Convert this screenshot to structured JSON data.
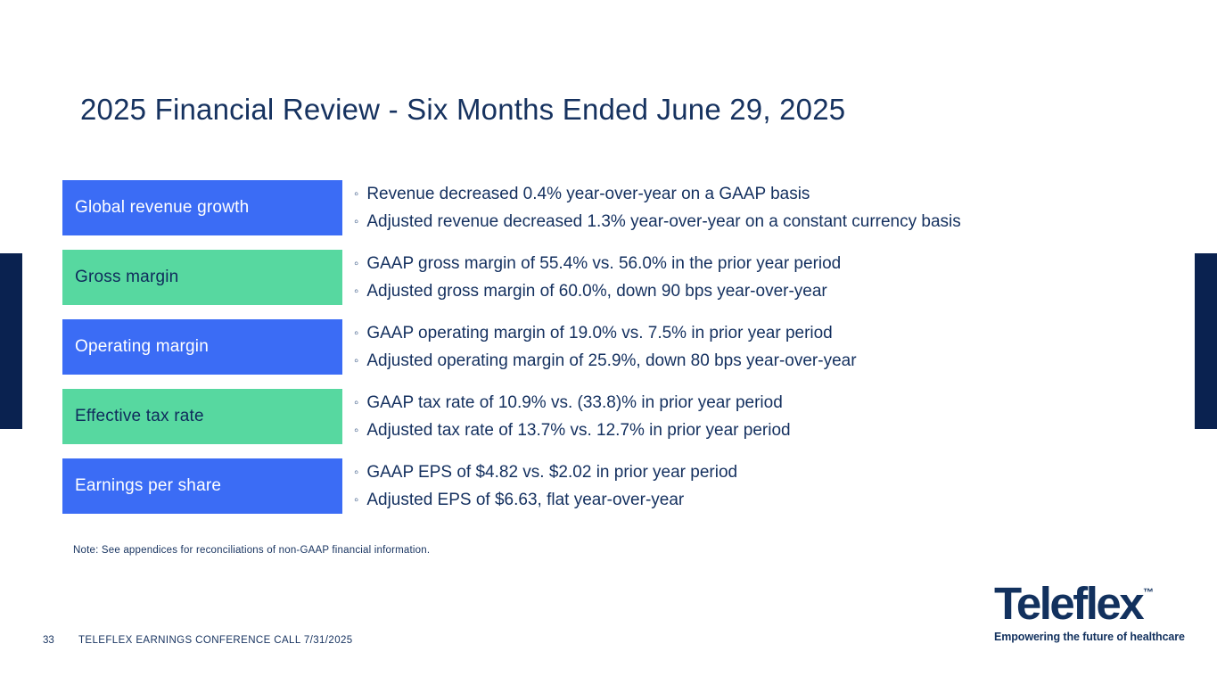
{
  "title": "2025 Financial Review - Six Months Ended June 29, 2025",
  "bullet_char": "◦",
  "rows": [
    {
      "label": "Global revenue growth",
      "color": "blue",
      "bullets": [
        "Revenue decreased 0.4% year-over-year on a GAAP basis",
        "Adjusted revenue decreased 1.3% year-over-year on a constant currency basis"
      ]
    },
    {
      "label": "Gross margin",
      "color": "green",
      "bullets": [
        "GAAP gross margin of 55.4% vs. 56.0% in the prior year period",
        "Adjusted gross margin of 60.0%, down 90 bps year-over-year"
      ]
    },
    {
      "label": "Operating margin",
      "color": "blue",
      "bullets": [
        "GAAP operating margin of 19.0% vs. 7.5% in prior year period",
        "Adjusted operating margin of 25.9%, down 80 bps year-over-year"
      ]
    },
    {
      "label": "Effective tax rate",
      "color": "green",
      "bullets": [
        "GAAP tax rate of 10.9% vs. (33.8)% in prior year period",
        "Adjusted tax rate of 13.7% vs. 12.7% in prior year period"
      ]
    },
    {
      "label": "Earnings per share",
      "color": "blue",
      "bullets": [
        "GAAP EPS of $4.82 vs. $2.02 in prior year period",
        "Adjusted EPS of $6.63, flat year-over-year"
      ]
    }
  ],
  "note": "Note: See appendices for reconciliations of non-GAAP financial information.",
  "footer": {
    "page_number": "33",
    "text": "TELEFLEX EARNINGS CONFERENCE CALL 7/31/2025"
  },
  "logo": {
    "wordmark": "Teleflex",
    "trademark": "™",
    "tagline": "Empowering the future of healthcare"
  },
  "colors": {
    "navy_text": "#16325F",
    "bar_navy": "#0A2250",
    "box_blue": "#3B6CF5",
    "box_green": "#57D8A0"
  }
}
